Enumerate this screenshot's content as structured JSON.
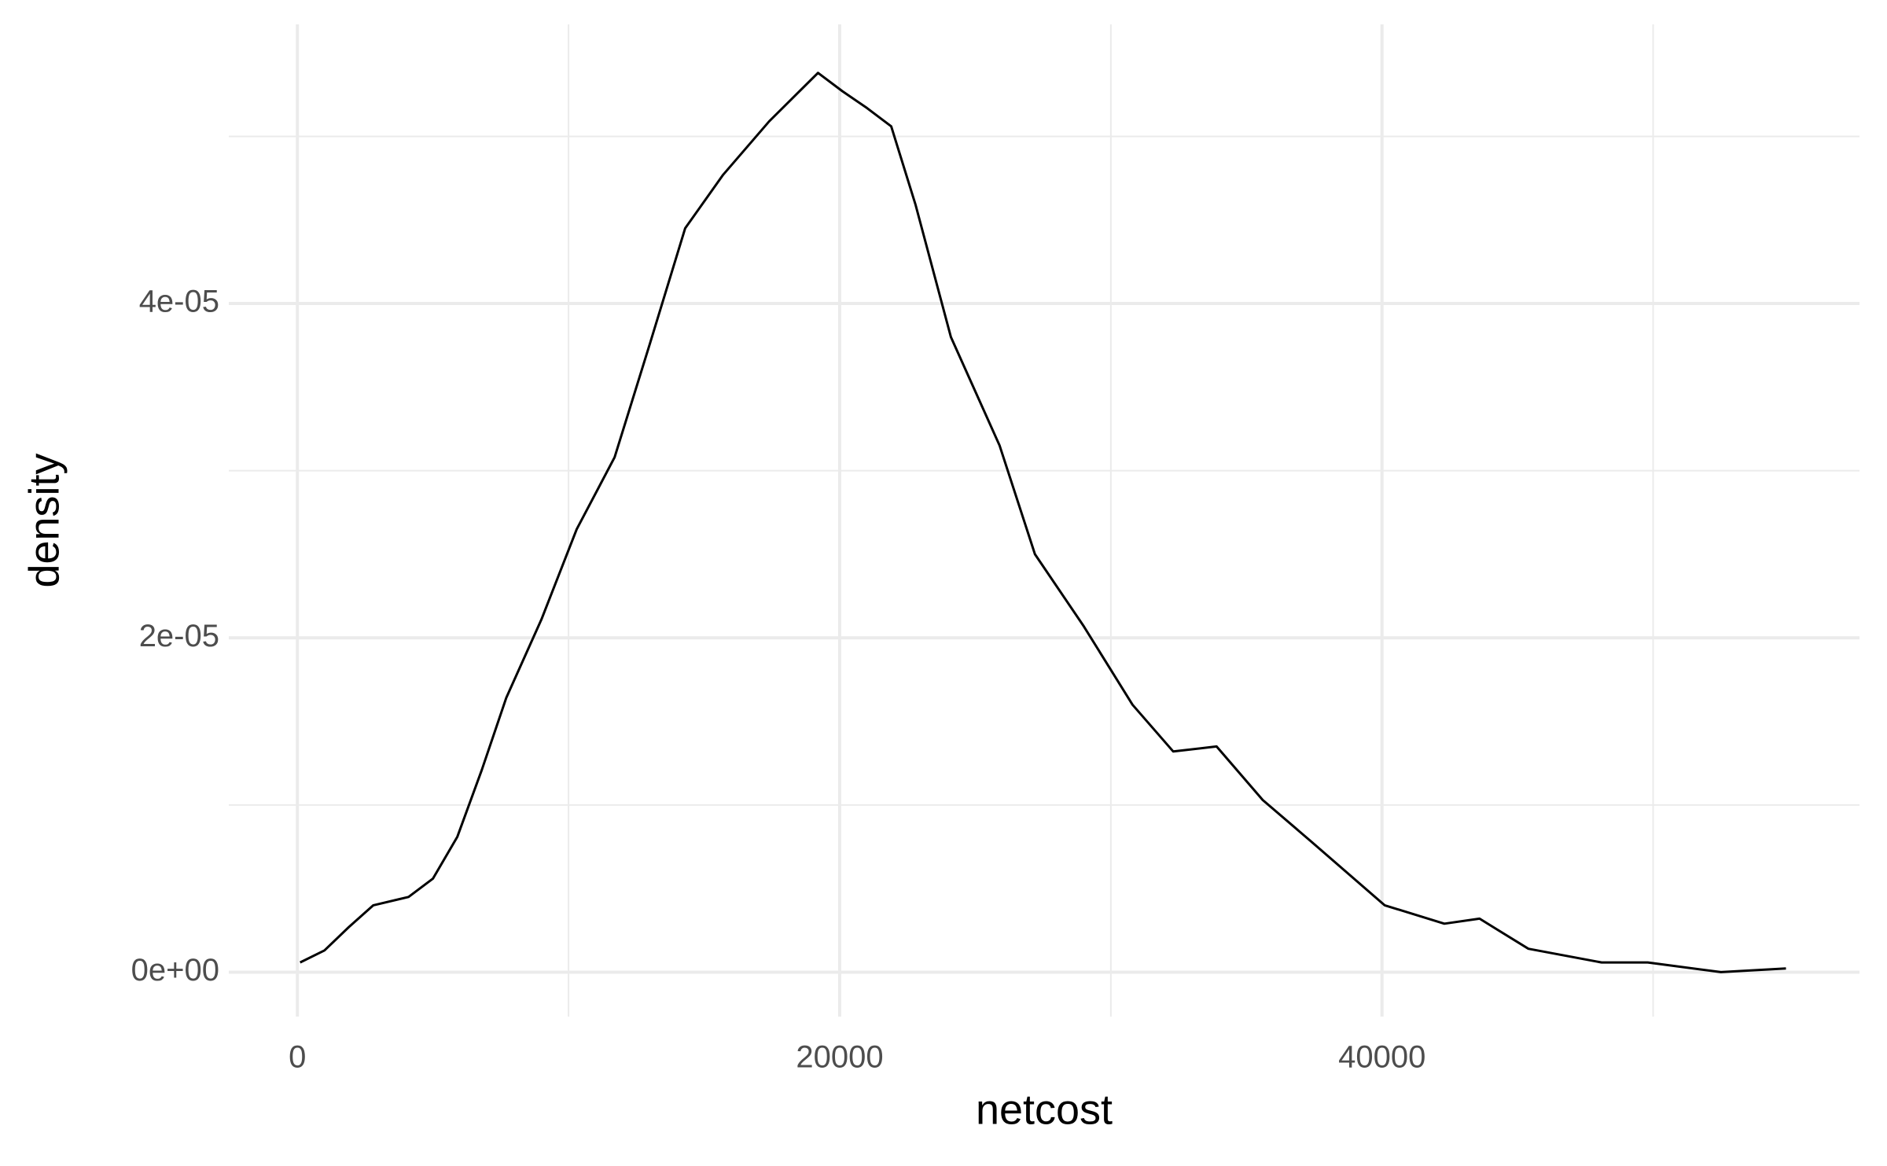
{
  "chart_data": {
    "type": "line",
    "x_label": "netcost",
    "y_label": "density",
    "x": [
      100,
      1000,
      1900,
      2800,
      4100,
      5000,
      5900,
      6800,
      7700,
      9000,
      10300,
      11700,
      13000,
      14300,
      15700,
      17400,
      19200,
      20100,
      21000,
      21900,
      22800,
      24100,
      25900,
      27200,
      29000,
      30800,
      32300,
      33900,
      35600,
      37400,
      40100,
      42300,
      43600,
      45400,
      48100,
      49800,
      52500,
      54900
    ],
    "values": [
      5.8e-07,
      1.3e-06,
      2.7e-06,
      4e-06,
      4.5e-06,
      5.6e-06,
      8.1e-06,
      1.21e-05,
      1.64e-05,
      2.11e-05,
      2.65e-05,
      3.08e-05,
      3.76e-05,
      4.45e-05,
      4.77e-05,
      5.09e-05,
      5.38e-05,
      5.27e-05,
      5.17e-05,
      5.06e-05,
      4.59e-05,
      3.8e-05,
      3.15e-05,
      2.5e-05,
      2.07e-05,
      1.6e-05,
      1.32e-05,
      1.35e-05,
      1.03e-05,
      7.8e-06,
      4e-06,
      2.9e-06,
      3.2e-06,
      1.4e-06,
      5.8e-07,
      5.8e-07,
      0,
      2.2e-07
    ],
    "color": "#000000",
    "xlim": [
      -2530,
      57610
    ],
    "ylim": [
      -2.66e-06,
      5.67e-05
    ],
    "xticks": [
      0,
      20000,
      40000
    ],
    "yticks": [
      {
        "value": 0,
        "label": "0e+00"
      },
      {
        "value": 2e-05,
        "label": "2e-05"
      },
      {
        "value": 4e-05,
        "label": "4e-05"
      }
    ],
    "x_minor_grid": [
      10000,
      30000,
      50000
    ],
    "y_minor_grid": [
      1e-05,
      3e-05,
      5e-05
    ],
    "grid": true
  }
}
